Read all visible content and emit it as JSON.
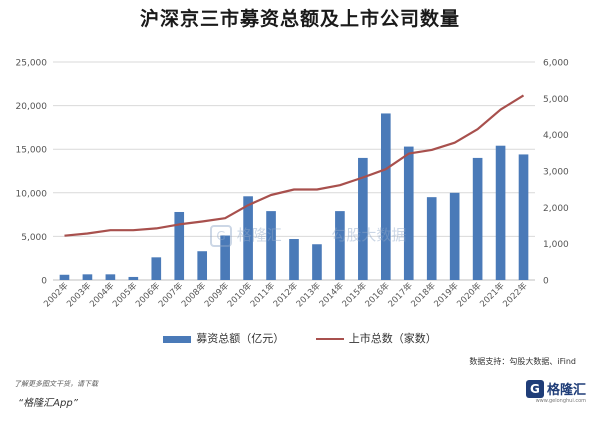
{
  "chart_data": {
    "type": "bar+line",
    "title": "沪深京三市募资总额及上市公司数量",
    "categories": [
      "2002年",
      "2003年",
      "2004年",
      "2005年",
      "2006年",
      "2007年",
      "2008年",
      "2009年",
      "2010年",
      "2011年",
      "2012年",
      "2013年",
      "2014年",
      "2015年",
      "2016年",
      "2017年",
      "2018年",
      "2019年",
      "2020年",
      "2021年",
      "2022年"
    ],
    "series": [
      {
        "name": "募资总额（亿元）",
        "type": "bar",
        "axis": "left",
        "color": "#4a7ab8",
        "values": [
          600,
          650,
          650,
          350,
          2600,
          7800,
          3300,
          5100,
          9600,
          7900,
          4700,
          4100,
          7900,
          14000,
          19100,
          15300,
          9500,
          10000,
          14000,
          15400,
          14400
        ]
      },
      {
        "name": "上市总数（家数）",
        "type": "line",
        "axis": "right",
        "color": "#a8504d",
        "values": [
          1220,
          1280,
          1370,
          1370,
          1420,
          1530,
          1610,
          1700,
          2060,
          2340,
          2490,
          2490,
          2610,
          2820,
          3050,
          3480,
          3580,
          3780,
          4150,
          4690,
          5080
        ]
      }
    ],
    "y_left": {
      "min": 0,
      "max": 25000,
      "ticks": [
        "0",
        "5,000",
        "10,000",
        "15,000",
        "20,000",
        "25,000"
      ]
    },
    "y_right": {
      "min": 0,
      "max": 6000,
      "ticks": [
        "0",
        "1,000",
        "2,000",
        "3,000",
        "4,000",
        "5,000",
        "6,000"
      ]
    },
    "grid": true,
    "legend_position": "bottom"
  },
  "footer": {
    "source": "数据支持：勾股大数据、iFind",
    "download_note": "了解更多图文干货，请下载",
    "app_name": "“格隆汇App”",
    "logo_mark": "G",
    "logo_text": "格隆汇",
    "logo_url": "www.gelonghui.com"
  },
  "watermark": {
    "mark": "G",
    "text1": "格隆汇",
    "text2": "勾股大数据"
  }
}
